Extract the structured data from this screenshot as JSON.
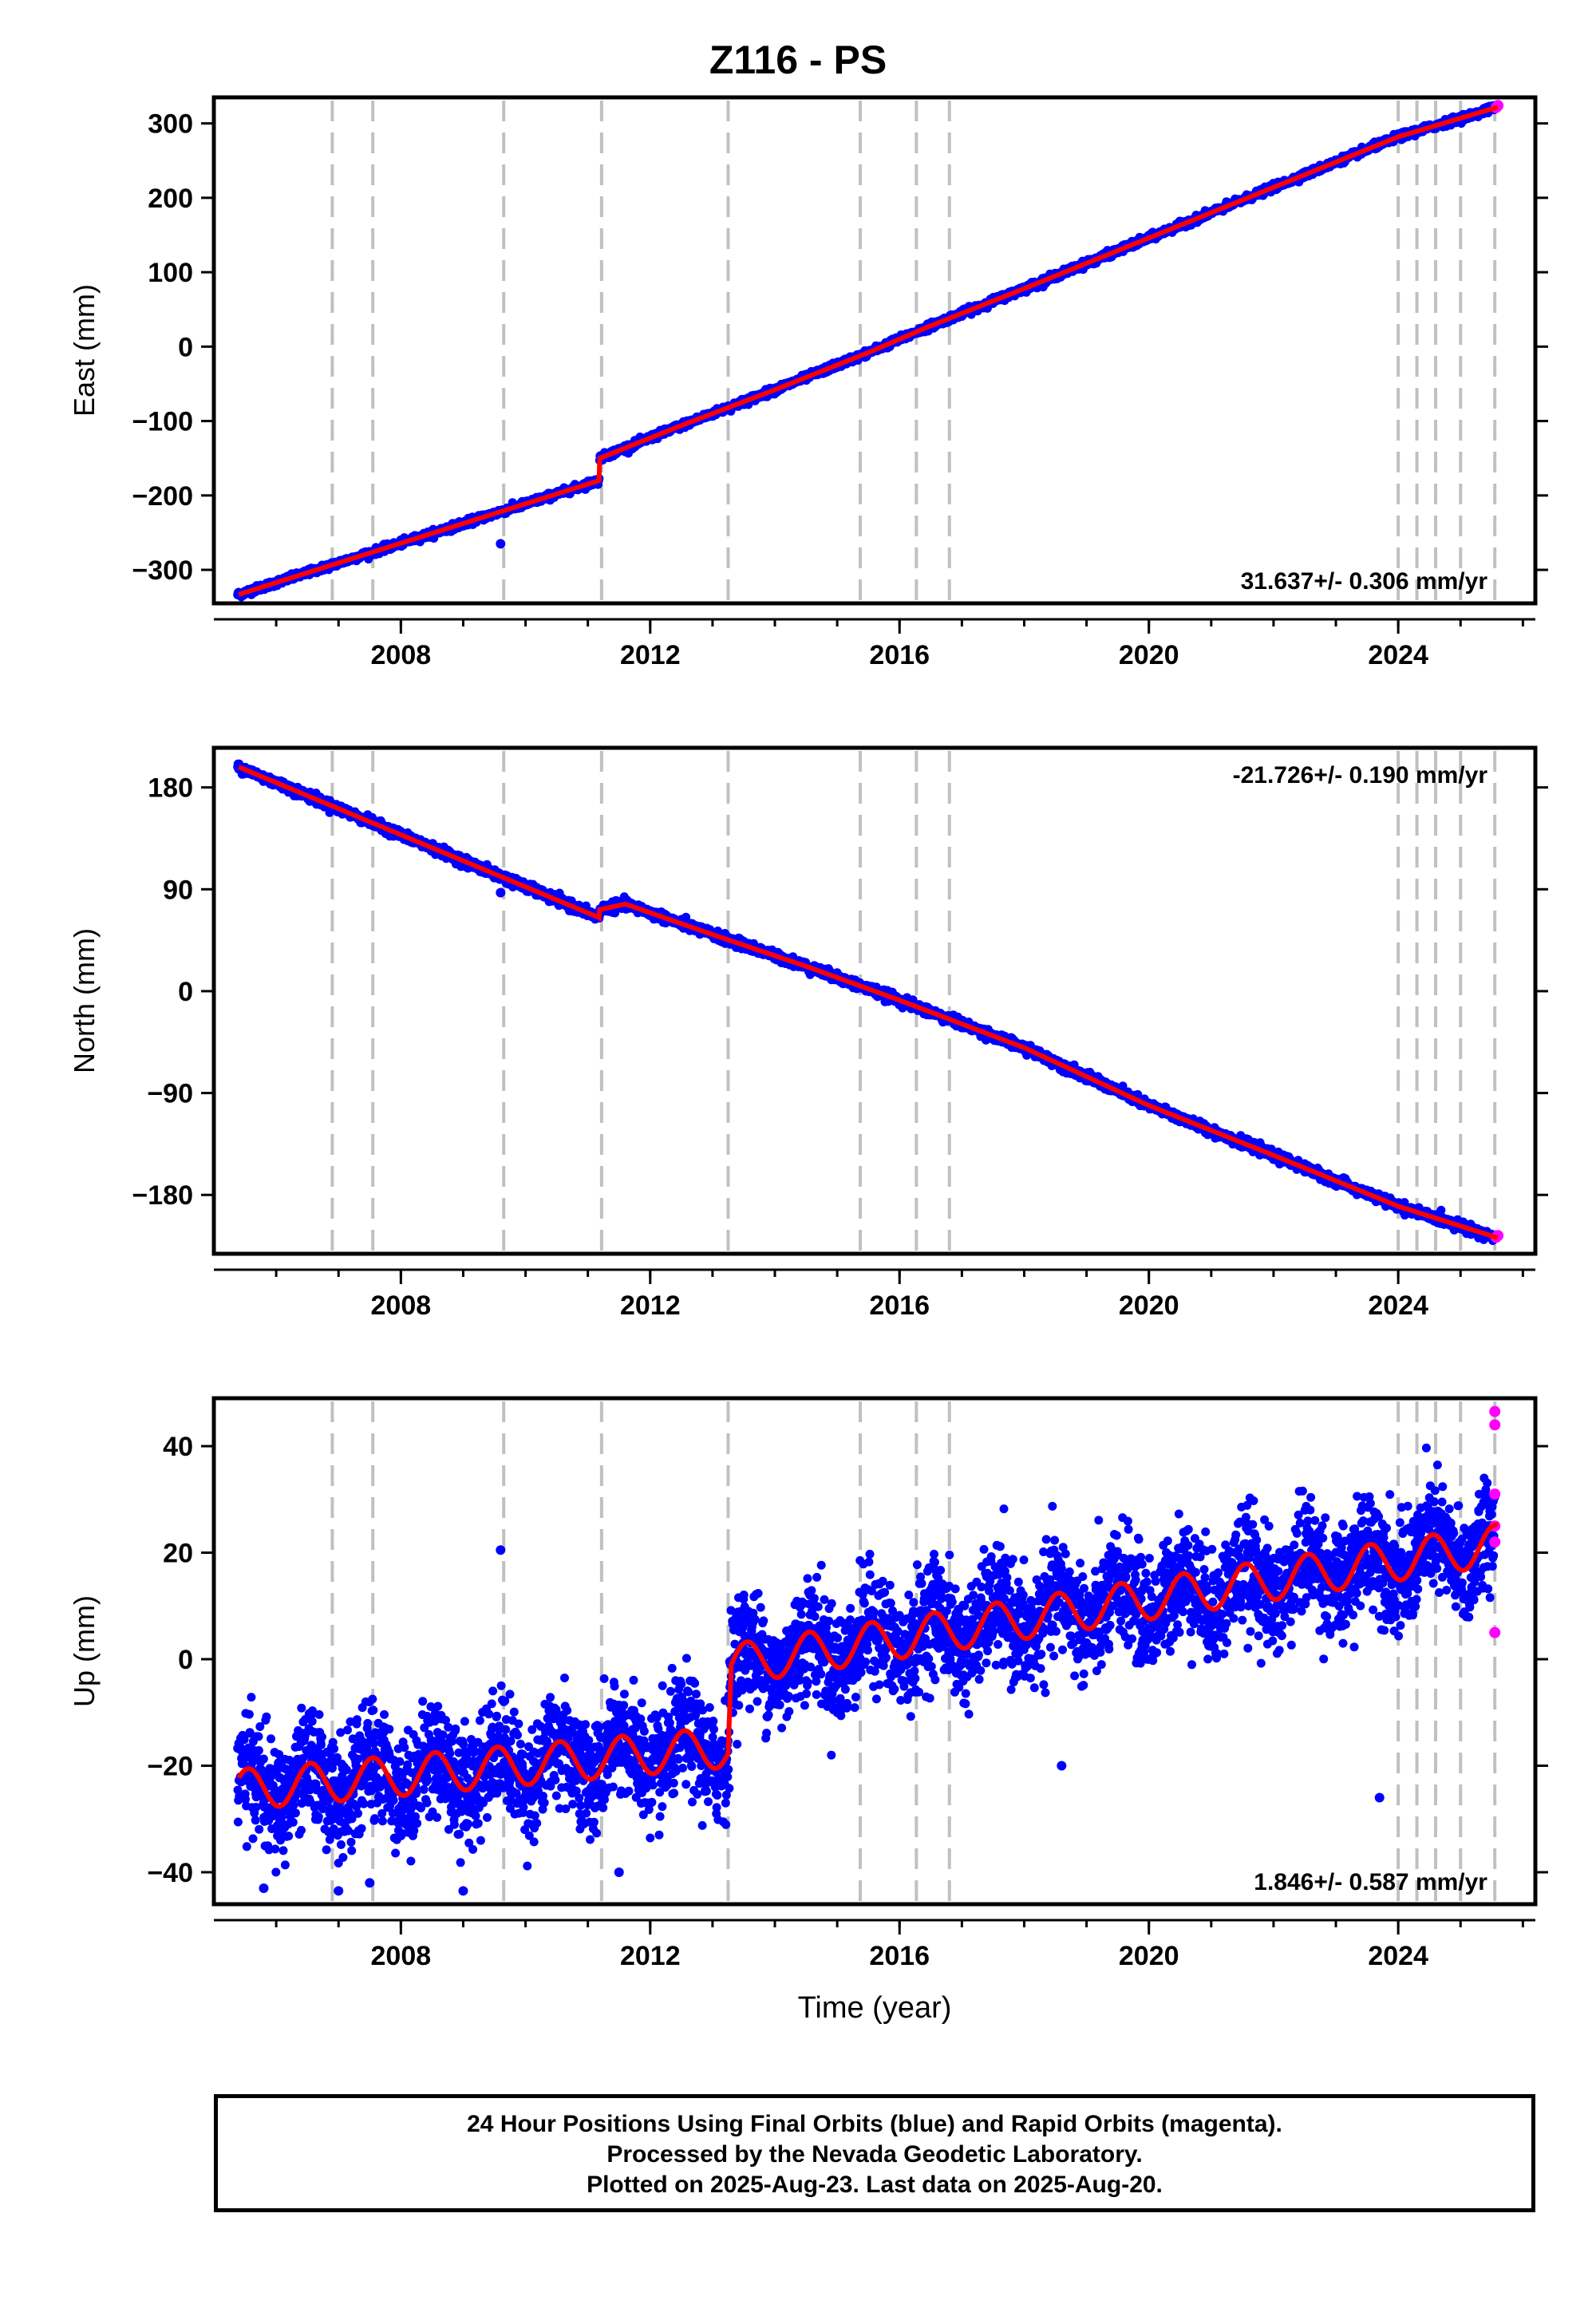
{
  "title": "Z116 - PS",
  "colors": {
    "final_orbits": "#0000ff",
    "rapid_orbits": "#ff00ff",
    "model": "#ff0000",
    "event_lines": "#c0c0c0"
  },
  "footer": {
    "line1": "24 Hour Positions Using Final Orbits (blue) and Rapid Orbits (magenta).",
    "line2": "Processed by the Nevada Geodetic Laboratory.",
    "line3": "Plotted on 2025-Aug-23. Last data on 2025-Aug-20."
  },
  "chart_data": [
    {
      "type": "scatter",
      "component": "east",
      "ylabel": "East (mm)",
      "xlabel": "",
      "xlim": [
        2005.0,
        2026.2
      ],
      "ylim": [
        -345,
        335
      ],
      "yticks": [
        -300,
        -200,
        -100,
        0,
        100,
        200,
        300
      ],
      "xticks": [
        2008,
        2012,
        2016,
        2020,
        2024
      ],
      "rate_label": "31.637+/- 0.306 mm/yr",
      "rate_label_position": "bottom-right",
      "grid": false,
      "model_points": [
        [
          2005.4,
          -333
        ],
        [
          2011.18,
          -180
        ],
        [
          2011.19,
          -150
        ],
        [
          2012.5,
          -106
        ],
        [
          2014.0,
          -58
        ],
        [
          2015.5,
          -8
        ],
        [
          2016.5,
          28
        ],
        [
          2018.0,
          78
        ],
        [
          2020.0,
          146
        ],
        [
          2022.0,
          214
        ],
        [
          2024.0,
          282
        ],
        [
          2025.6,
          322
        ]
      ],
      "outliers": [
        [
          2009.6,
          -265
        ]
      ]
    },
    {
      "type": "scatter",
      "component": "north",
      "ylabel": "North (mm)",
      "xlabel": "",
      "xlim": [
        2005.0,
        2026.2
      ],
      "ylim": [
        -232,
        215
      ],
      "yticks": [
        -180,
        -90,
        0,
        90,
        180
      ],
      "xticks": [
        2008,
        2012,
        2016,
        2020,
        2024
      ],
      "rate_label": "-21.726+/- 0.190 mm/yr",
      "rate_label_position": "top-right",
      "grid": false,
      "model_points": [
        [
          2005.4,
          198
        ],
        [
          2011.18,
          65
        ],
        [
          2011.19,
          72
        ],
        [
          2011.6,
          77
        ],
        [
          2013.0,
          50
        ],
        [
          2014.5,
          22
        ],
        [
          2016.0,
          -8
        ],
        [
          2018.0,
          -50
        ],
        [
          2020.0,
          -101
        ],
        [
          2022.0,
          -145
        ],
        [
          2024.0,
          -190
        ],
        [
          2025.6,
          -218
        ]
      ],
      "outliers": [
        [
          2009.6,
          87
        ]
      ]
    },
    {
      "type": "scatter",
      "component": "up",
      "ylabel": "Up (mm)",
      "xlabel": "Time (year)",
      "xlim": [
        2005.0,
        2026.2
      ],
      "ylim": [
        -46,
        49
      ],
      "yticks": [
        -40,
        -20,
        0,
        20,
        40
      ],
      "xticks": [
        2008,
        2012,
        2016,
        2020,
        2024
      ],
      "rate_label": "1.846+/- 0.587 mm/yr",
      "rate_label_position": "bottom-right",
      "grid": false,
      "model_points": [
        [
          2005.4,
          -24.5
        ],
        [
          2013.25,
          -16.5
        ],
        [
          2013.3,
          -1.0
        ],
        [
          2025.6,
          21.5
        ]
      ],
      "seasonal_amplitude_mm": 3.8,
      "outliers": [
        [
          2009.6,
          20.5
        ],
        [
          2011.5,
          -40
        ],
        [
          2023.7,
          -26
        ],
        [
          2018.6,
          -20
        ],
        [
          2005.8,
          -43
        ],
        [
          2009.0,
          -43.5
        ],
        [
          2007.0,
          -43.5
        ],
        [
          2007.5,
          -42
        ]
      ],
      "rapid_points": [
        [
          2025.55,
          46.5
        ],
        [
          2025.55,
          44
        ],
        [
          2025.55,
          31
        ],
        [
          2025.55,
          25
        ],
        [
          2025.55,
          22
        ],
        [
          2025.55,
          5
        ]
      ]
    }
  ],
  "event_years": [
    2006.9,
    2007.55,
    2009.65,
    2011.22,
    2013.25,
    2015.37,
    2016.27,
    2016.8,
    2024.0,
    2024.3,
    2024.6,
    2025.0,
    2025.55
  ]
}
